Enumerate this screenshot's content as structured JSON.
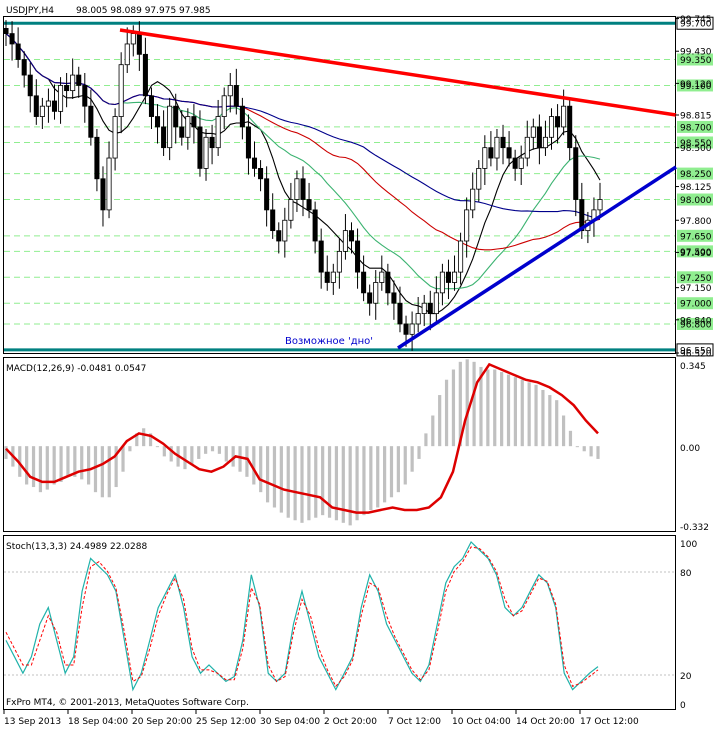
{
  "header": {
    "symbol_label": "USDJPY,H4",
    "ohlc": "98.005 98.089 97.975 97.985"
  },
  "price_levels": [
    "99.700",
    "99.350",
    "99.100",
    "98.700",
    "98.550",
    "98.250",
    "98.000",
    "97.650",
    "97.500",
    "97.250",
    "97.000",
    "96.800",
    "96.550"
  ],
  "price_ticks": [
    "99.745",
    "99.430",
    "99.120",
    "98.815",
    "98.500",
    "98.125",
    "97.800",
    "97.490",
    "97.150",
    "96.840",
    "96.520"
  ],
  "annotation": "Возможное 'дно'",
  "macd": {
    "label": "MACD(12,26,9) -0.0481 0.0547",
    "ticks": [
      "0.345",
      "0.00",
      "-0.332"
    ]
  },
  "stoch": {
    "label": "Stoch(13,3,3) 24.4989 22.0288",
    "ticks": [
      "100",
      "80",
      "20",
      "0"
    ]
  },
  "copyright": "FxPro MT4, © 2001-2013, MetaQuotes Software Corp.",
  "time_labels": [
    "13 Sep 2013",
    "18 Sep 04:00",
    "20 Sep 20:00",
    "25 Sep 12:00",
    "30 Sep 04:00",
    "2 Oct 20:00",
    "7 Oct 12:00",
    "10 Oct 04:00",
    "14 Oct 20:00",
    "17 Oct 12:00"
  ],
  "colors": {
    "candle": "#000000",
    "level_solid": "#008080",
    "level_dash": "#90ee90",
    "label_box": "#90ee90",
    "resistance": "#ff0000",
    "support": "#0000cd",
    "ma_fast": "#000000",
    "ma_mid": "#3cb371",
    "ma_slow": "#cc0000",
    "ma_long": "#00008b",
    "macd_hist": "#c0c0c0",
    "macd_signal": "#dd0000",
    "stoch_main": "#20b2aa",
    "stoch_signal": "#ff0000"
  },
  "chart_data": {
    "type": "candlestick",
    "price_range": [
      96.52,
      99.76
    ],
    "close": [
      99.6,
      99.5,
      99.35,
      99.2,
      99.0,
      98.8,
      98.9,
      98.95,
      98.85,
      99.1,
      99.05,
      99.2,
      99.1,
      98.9,
      98.6,
      98.2,
      97.9,
      98.4,
      98.8,
      99.3,
      99.5,
      99.6,
      99.4,
      99.0,
      98.8,
      98.7,
      98.5,
      98.9,
      98.7,
      98.6,
      98.8,
      98.7,
      98.3,
      98.6,
      98.5,
      98.8,
      99.0,
      99.1,
      98.9,
      98.7,
      98.4,
      98.3,
      98.2,
      97.9,
      97.7,
      97.6,
      97.8,
      98.0,
      98.2,
      98.0,
      97.9,
      97.6,
      97.3,
      97.2,
      97.3,
      97.5,
      97.7,
      97.6,
      97.3,
      97.1,
      97.0,
      97.2,
      97.3,
      97.1,
      97.0,
      96.8,
      96.7,
      96.8,
      96.9,
      97.0,
      96.9,
      97.1,
      97.3,
      97.2,
      97.3,
      97.6,
      97.9,
      98.1,
      98.3,
      98.5,
      98.4,
      98.6,
      98.5,
      98.4,
      98.3,
      98.4,
      98.6,
      98.7,
      98.5,
      98.6,
      98.8,
      98.7,
      98.9,
      98.5,
      98.0,
      97.7,
      97.8,
      97.9,
      98.0
    ],
    "macd_hist": [
      -0.05,
      -0.08,
      -0.12,
      -0.15,
      -0.16,
      -0.18,
      -0.17,
      -0.15,
      -0.14,
      -0.12,
      -0.12,
      -0.13,
      -0.15,
      -0.18,
      -0.2,
      -0.2,
      -0.16,
      -0.1,
      -0.02,
      0.05,
      0.07,
      0.05,
      0.0,
      -0.04,
      -0.06,
      -0.08,
      -0.09,
      -0.07,
      -0.05,
      -0.03,
      -0.02,
      -0.03,
      -0.06,
      -0.08,
      -0.1,
      -0.12,
      -0.15,
      -0.18,
      -0.22,
      -0.24,
      -0.26,
      -0.28,
      -0.29,
      -0.3,
      -0.29,
      -0.28,
      -0.27,
      -0.28,
      -0.29,
      -0.3,
      -0.31,
      -0.29,
      -0.27,
      -0.25,
      -0.24,
      -0.22,
      -0.2,
      -0.18,
      -0.15,
      -0.1,
      -0.05,
      0.05,
      0.12,
      0.2,
      0.26,
      0.3,
      0.33,
      0.34,
      0.33,
      0.31,
      0.3,
      0.3,
      0.29,
      0.28,
      0.27,
      0.26,
      0.25,
      0.24,
      0.22,
      0.2,
      0.18,
      0.12,
      0.06,
      0.0,
      -0.02,
      -0.04,
      -0.05
    ],
    "macd_signal": [
      -0.01,
      -0.06,
      -0.12,
      -0.14,
      -0.14,
      -0.12,
      -0.1,
      -0.09,
      -0.07,
      -0.04,
      0.02,
      0.05,
      0.04,
      0.01,
      -0.03,
      -0.06,
      -0.09,
      -0.1,
      -0.08,
      -0.04,
      -0.05,
      -0.13,
      -0.15,
      -0.17,
      -0.18,
      -0.19,
      -0.2,
      -0.24,
      -0.25,
      -0.26,
      -0.26,
      -0.25,
      -0.24,
      -0.25,
      -0.25,
      -0.24,
      -0.2,
      -0.1,
      0.1,
      0.25,
      0.32,
      0.3,
      0.28,
      0.26,
      0.25,
      0.23,
      0.2,
      0.16,
      0.1,
      0.05
    ],
    "stoch_main": [
      40,
      30,
      20,
      30,
      50,
      60,
      40,
      20,
      30,
      70,
      90,
      85,
      80,
      70,
      40,
      10,
      20,
      40,
      60,
      70,
      80,
      60,
      30,
      20,
      25,
      20,
      15,
      18,
      40,
      80,
      60,
      20,
      15,
      20,
      50,
      70,
      50,
      30,
      20,
      10,
      20,
      30,
      60,
      80,
      70,
      50,
      40,
      30,
      20,
      15,
      25,
      50,
      75,
      85,
      90,
      100,
      95,
      90,
      80,
      60,
      55,
      60,
      70,
      80,
      75,
      60,
      20,
      10,
      15,
      20,
      24
    ],
    "stoch_signal": [
      45,
      35,
      25,
      25,
      40,
      55,
      45,
      25,
      25,
      60,
      85,
      88,
      82,
      72,
      45,
      15,
      18,
      35,
      55,
      68,
      78,
      65,
      35,
      22,
      22,
      20,
      16,
      16,
      35,
      72,
      62,
      25,
      15,
      18,
      45,
      65,
      55,
      35,
      22,
      12,
      18,
      28,
      55,
      75,
      72,
      55,
      42,
      32,
      22,
      16,
      22,
      45,
      70,
      82,
      88,
      97,
      96,
      91,
      82,
      65,
      55,
      58,
      68,
      78,
      76,
      62,
      25,
      12,
      14,
      18,
      22
    ]
  }
}
